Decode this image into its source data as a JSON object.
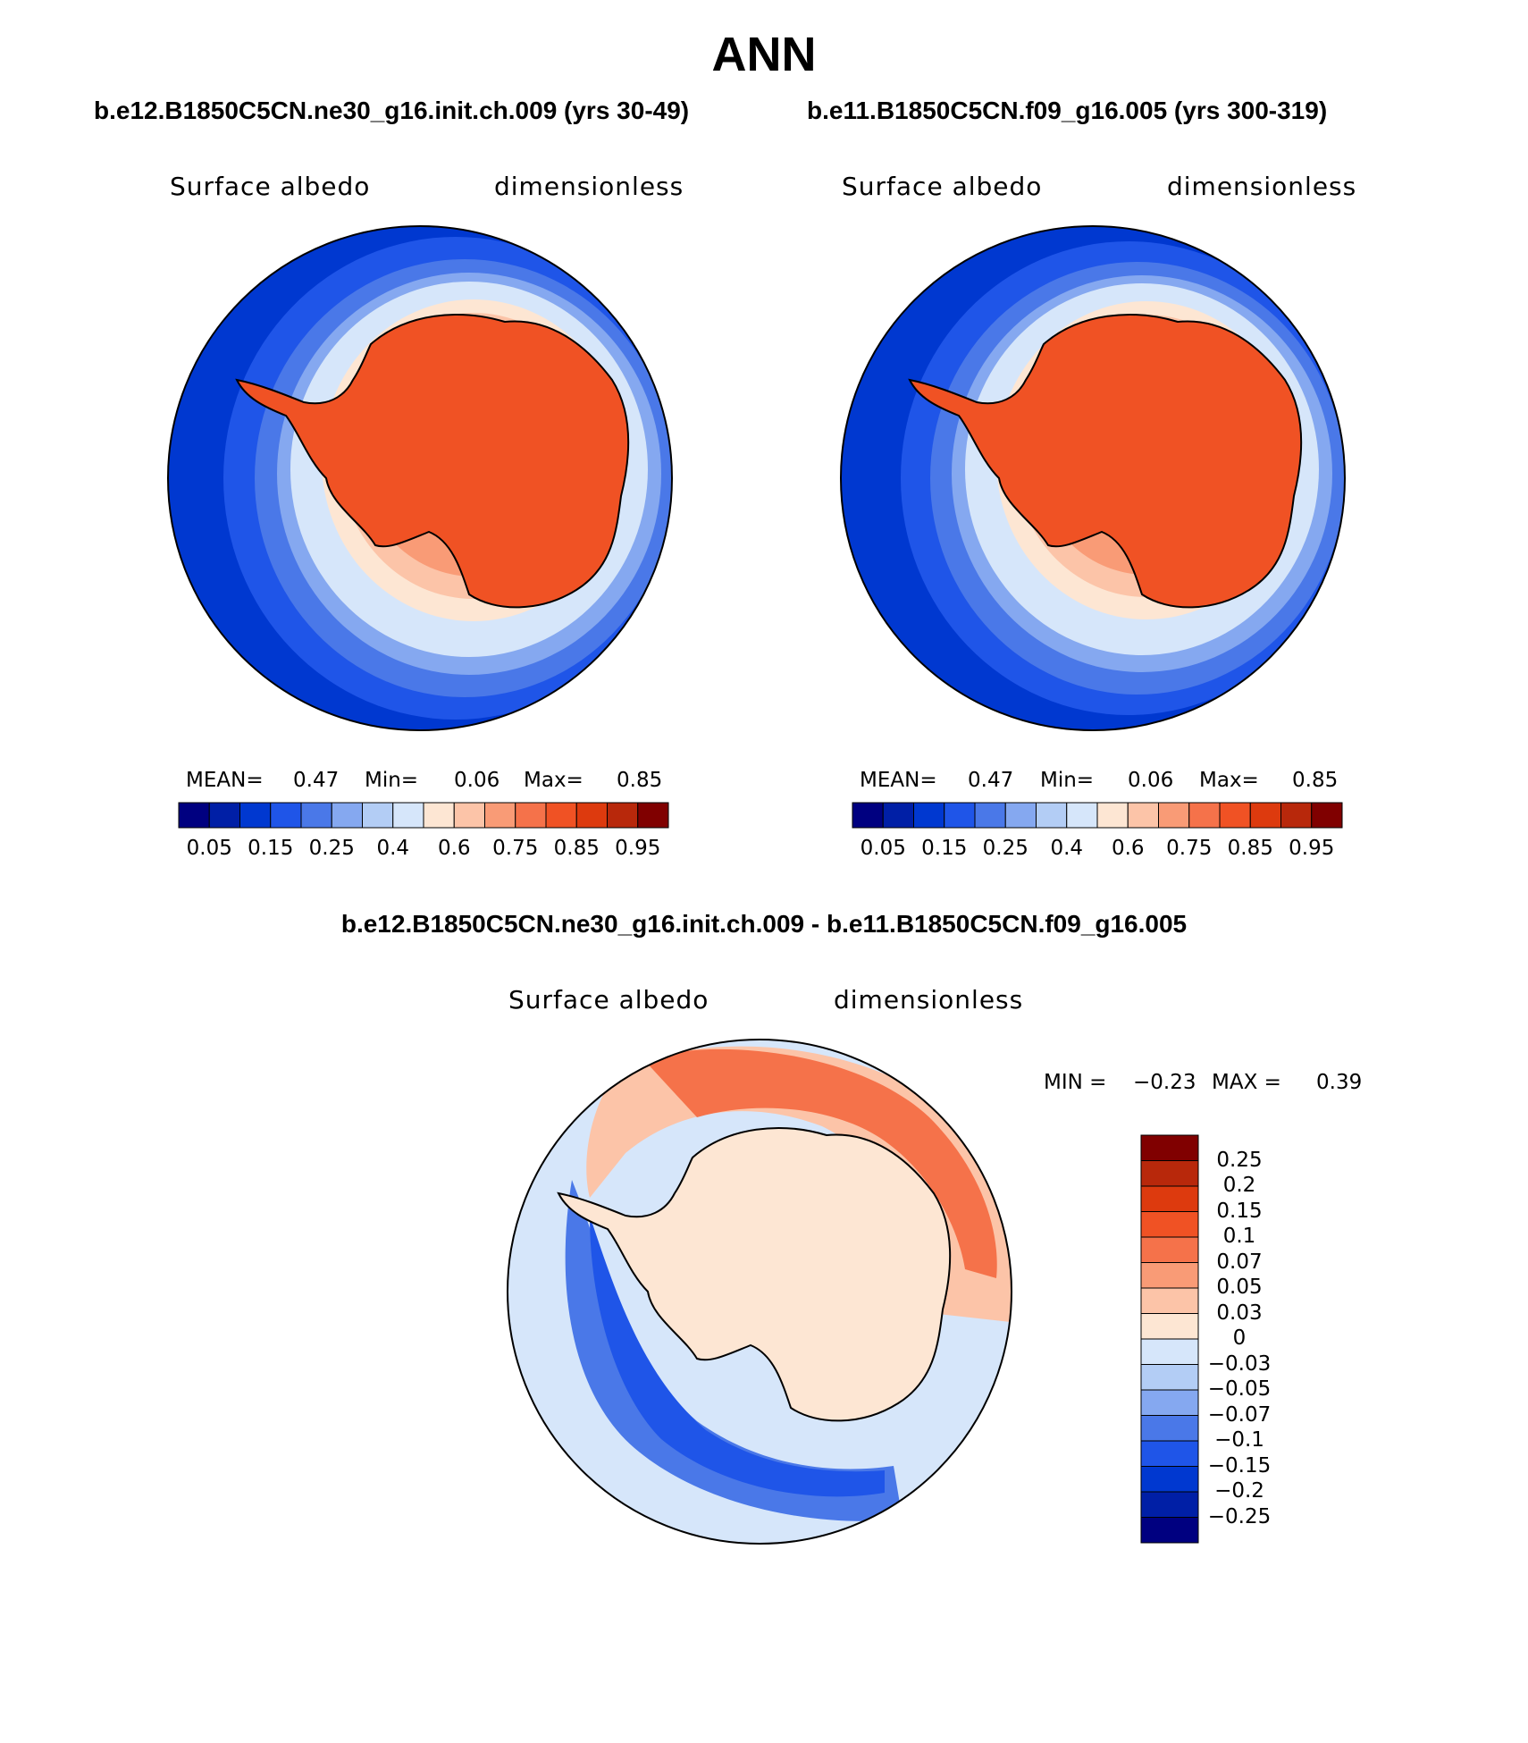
{
  "title": "ANN",
  "panels": [
    {
      "case_title": "b.e12.B1850C5CN.ne30_g16.init.ch.009 (yrs 30-49)",
      "variable": "Surface albedo",
      "units": "dimensionless",
      "stats": {
        "mean_label": "MEAN=",
        "mean": "0.47",
        "min_label": "Min=",
        "min": "0.06",
        "max_label": "Max=",
        "max": "0.85"
      }
    },
    {
      "case_title": "b.e11.B1850C5CN.f09_g16.005 (yrs 300-319)",
      "variable": "Surface albedo",
      "units": "dimensionless",
      "stats": {
        "mean_label": "MEAN=",
        "mean": "0.47",
        "min_label": "Min=",
        "min": "0.06",
        "max_label": "Max=",
        "max": "0.85"
      }
    }
  ],
  "abs_colorbar": {
    "colors": [
      "#000080",
      "#001fa6",
      "#0038d0",
      "#1f55e8",
      "#4a78e8",
      "#85a8f0",
      "#b3cdf5",
      "#d6e6fa",
      "#fde6d3",
      "#fcc4a8",
      "#f99b76",
      "#f5724a",
      "#f05224",
      "#dd3a0e",
      "#b8280b",
      "#800000"
    ],
    "labels": [
      "0.05",
      "0.15",
      "0.25",
      "0.4",
      "0.6",
      "0.75",
      "0.85",
      "0.95"
    ]
  },
  "diff_panel": {
    "title": "b.e12.B1850C5CN.ne30_g16.init.ch.009 - b.e11.B1850C5CN.f09_g16.005",
    "variable": "Surface albedo",
    "units": "dimensionless",
    "stats": {
      "min_label": "MIN =",
      "min": "−0.23",
      "max_label": "MAX =",
      "max": "0.39"
    }
  },
  "diff_colorbar": {
    "colors": [
      "#800000",
      "#b8280b",
      "#dd3a0e",
      "#f05224",
      "#f5724a",
      "#f99b76",
      "#fcc4a8",
      "#fde6d3",
      "#d6e6fa",
      "#b3cdf5",
      "#85a8f0",
      "#4a78e8",
      "#1f55e8",
      "#0038d0",
      "#001fa6",
      "#000080"
    ],
    "labels": [
      "0.25",
      "0.2",
      "0.15",
      "0.1",
      "0.07",
      "0.05",
      "0.03",
      "0",
      "−0.03",
      "−0.05",
      "−0.07",
      "−0.1",
      "−0.15",
      "−0.2",
      "−0.25"
    ]
  }
}
